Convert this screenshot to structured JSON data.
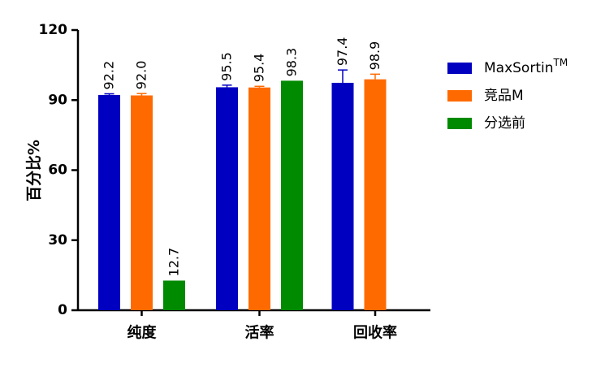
{
  "chart_data": {
    "type": "bar",
    "ylabel": "百分比%",
    "ylim": [
      0,
      120
    ],
    "yticks": [
      "0",
      "30",
      "60",
      "90",
      "120"
    ],
    "categories": [
      "纯度",
      "活率",
      "回收率"
    ],
    "series": [
      {
        "name": "MaxSortin",
        "name_sup": "TM",
        "color": "#0000c0",
        "values": [
          92.2,
          95.5,
          97.4
        ],
        "labels": [
          "92.2",
          "95.5",
          "97.4"
        ],
        "error": [
          0.5,
          0.9,
          5.5
        ]
      },
      {
        "name": "竞品M",
        "color": "#ff6a00",
        "values": [
          92.0,
          95.4,
          98.9
        ],
        "labels": [
          "92.0",
          "95.4",
          "98.9"
        ],
        "error": [
          0.8,
          0.5,
          2.2
        ]
      },
      {
        "name": "分选前",
        "color": "#008a00",
        "values": [
          12.7,
          98.3,
          null
        ],
        "labels": [
          "12.7",
          "98.3",
          null
        ],
        "error": [
          0,
          0,
          0
        ]
      }
    ],
    "legend": "right"
  }
}
